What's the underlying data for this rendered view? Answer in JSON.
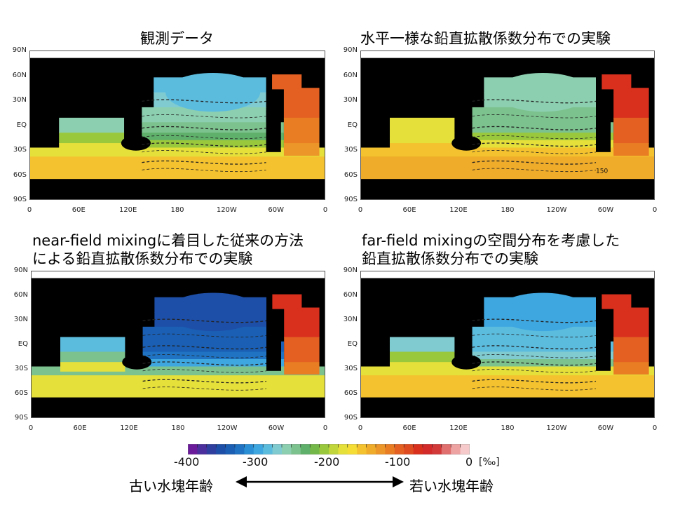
{
  "panels": [
    {
      "title": [
        "観測データ"
      ],
      "variant": "obs"
    },
    {
      "title": [
        "水平一様な鉛直拡散係数分布での実験"
      ],
      "variant": "uniform",
      "annotation": "150"
    },
    {
      "title": [
        "near-field mixingに着目した従来の方法",
        "による鉛直拡散係数分布での実験"
      ],
      "variant": "near"
    },
    {
      "title": [
        "far-field mixingの空間分布を考慮した",
        "鉛直拡散係数分布での実験"
      ],
      "variant": "far"
    }
  ],
  "axes": {
    "lat_labels": [
      "90N",
      "60N",
      "30N",
      "EQ",
      "30S",
      "60S",
      "90S"
    ],
    "lon_labels": [
      "0",
      "60E",
      "120E",
      "180",
      "120W",
      "60W",
      "0"
    ]
  },
  "colorbar": {
    "ticks": [
      "-400",
      "-300",
      "-200",
      "-100",
      "0"
    ],
    "range": [
      -400,
      0
    ],
    "unit": "[‰]",
    "colors": [
      "#6a1b9a",
      "#4a2f9d",
      "#2f3fa0",
      "#1e4fa8",
      "#1a5fb4",
      "#1f73c2",
      "#2a8fd4",
      "#3fa7e0",
      "#5cbcde",
      "#7fcbd0",
      "#8ccfb0",
      "#7cc28e",
      "#5fb06a",
      "#74b84a",
      "#9ac83c",
      "#c0d63a",
      "#e6e03a",
      "#f5dd36",
      "#f4c22e",
      "#efab2a",
      "#ec9528",
      "#e87d24",
      "#e36022",
      "#df4b20",
      "#d9301e",
      "#d32a2a",
      "#d23a3a",
      "#e0706f",
      "#eea3a3",
      "#f6caca"
    ]
  },
  "legend": {
    "old_label": "古い水塊年齢",
    "young_label": "若い水塊年齢"
  }
}
